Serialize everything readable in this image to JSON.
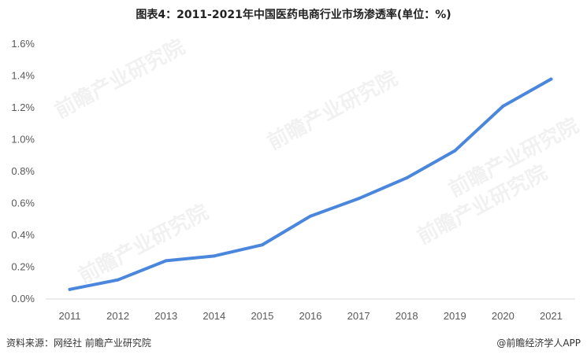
{
  "chart_data": {
    "type": "line",
    "title": "图表4：2011-2021年中国医药电商行业市场渗透率(单位：%)",
    "categories": [
      "2011",
      "2012",
      "2013",
      "2014",
      "2015",
      "2016",
      "2017",
      "2018",
      "2019",
      "2020",
      "2021"
    ],
    "series": [
      {
        "values": [
          0.06,
          0.12,
          0.24,
          0.27,
          0.34,
          0.52,
          0.63,
          0.76,
          0.93,
          1.21,
          1.38
        ]
      }
    ],
    "ylim": [
      0,
      1.6
    ],
    "yticks": [
      0,
      0.2,
      0.4,
      0.6,
      0.8,
      1.0,
      1.2,
      1.4,
      1.6
    ],
    "ytick_labels": [
      "0.0%",
      "0.2%",
      "0.4%",
      "0.6%",
      "0.8%",
      "1.0%",
      "1.2%",
      "1.4%",
      "1.6%"
    ],
    "grid": false,
    "line_color": "#4a87dc"
  },
  "footer": {
    "source": "资料来源：网经社 前瞻产业研究院",
    "brand": "@前瞻经济学人APP"
  },
  "watermark_text": "前瞻产业研究院"
}
